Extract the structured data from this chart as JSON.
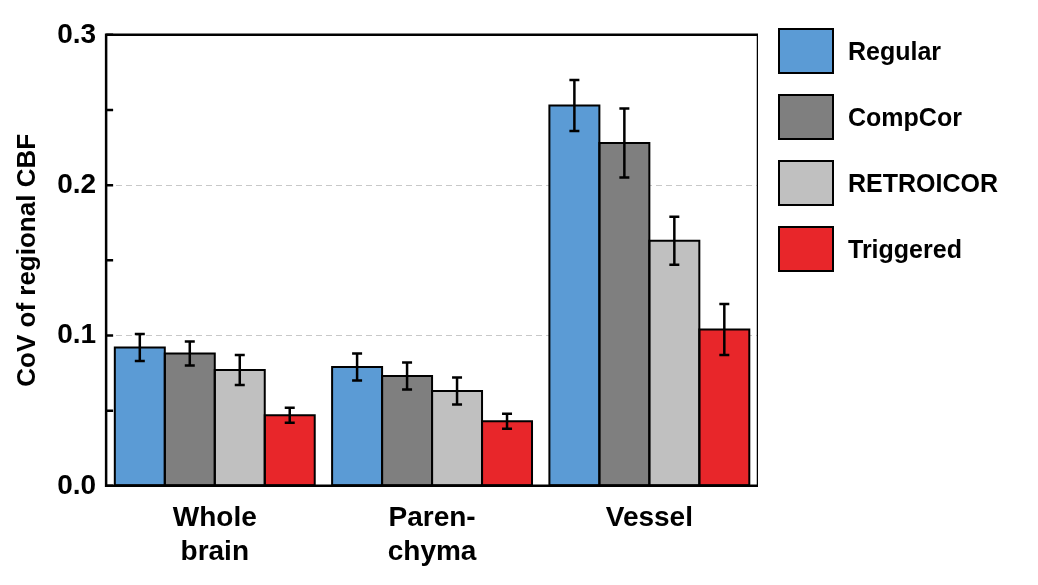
{
  "chart_data": {
    "type": "bar",
    "ylabel": "CoV of regional CBF",
    "categories": [
      "Whole\nbrain",
      "Paren-\nchyma",
      "Vessel"
    ],
    "series": [
      {
        "name": "Regular",
        "color": "#5b9bd5",
        "values": [
          0.092,
          0.079,
          0.253
        ],
        "errors": [
          0.009,
          0.009,
          0.017
        ]
      },
      {
        "name": "CompCor",
        "color": "#7f7f7f",
        "values": [
          0.088,
          0.073,
          0.228
        ],
        "errors": [
          0.008,
          0.009,
          0.023
        ]
      },
      {
        "name": "RETROICOR",
        "color": "#c0c0c0",
        "values": [
          0.077,
          0.063,
          0.163
        ],
        "errors": [
          0.01,
          0.009,
          0.016
        ]
      },
      {
        "name": "Triggered",
        "color": "#e8262a",
        "values": [
          0.047,
          0.043,
          0.104
        ],
        "errors": [
          0.005,
          0.005,
          0.017
        ]
      }
    ],
    "ylim": [
      0,
      0.3
    ],
    "yticks": [
      {
        "value": 0,
        "label": "0.0"
      },
      {
        "value": 0.05,
        "label": null
      },
      0.1,
      {
        "value": 0.15,
        "label": null
      },
      0.2,
      {
        "value": 0.25,
        "label": null
      },
      0.3
    ],
    "grid": "y",
    "legend": "right"
  }
}
